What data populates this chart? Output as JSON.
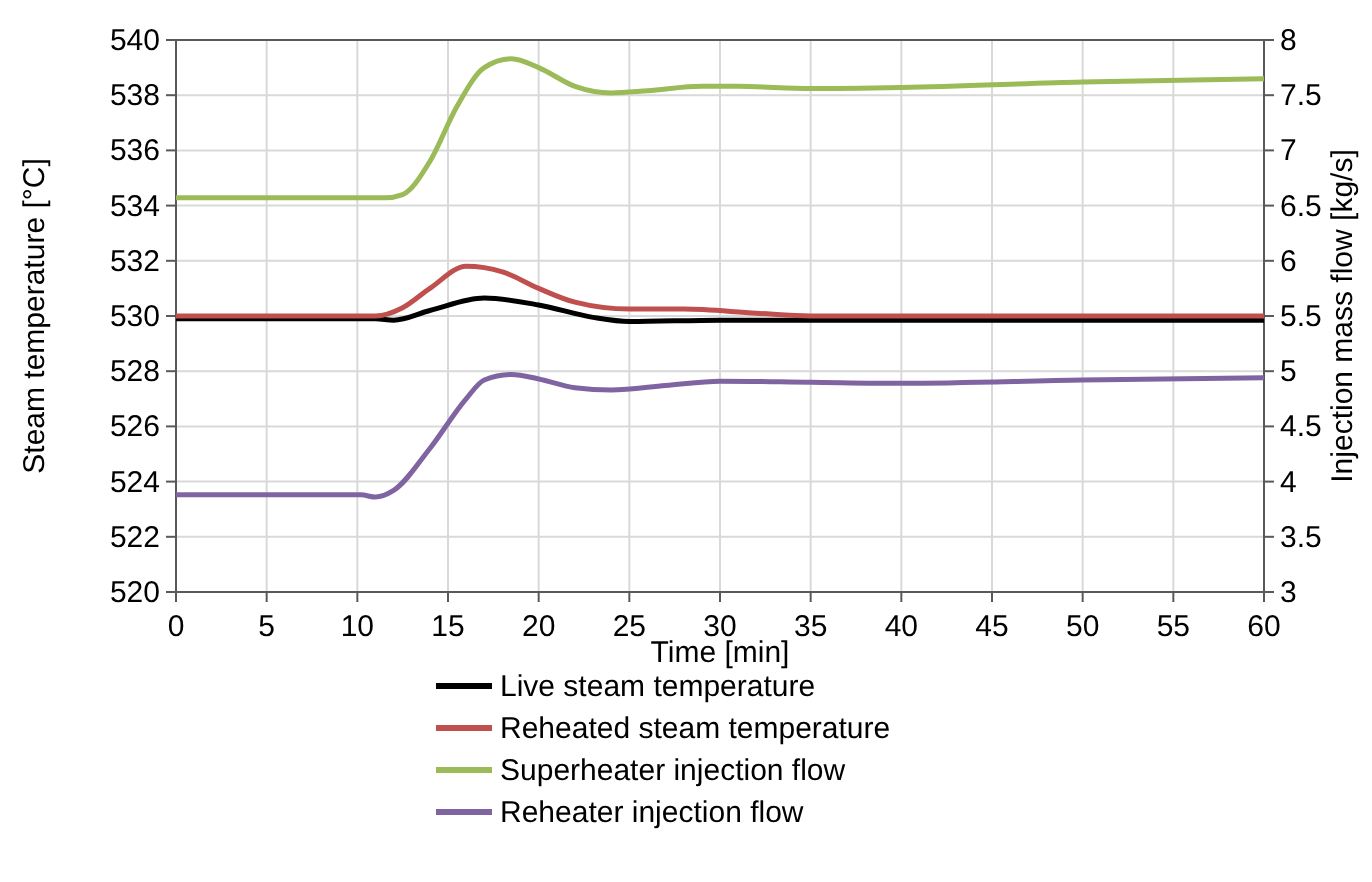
{
  "chart_data": {
    "type": "line",
    "xlabel": "Time [min]",
    "ylabel": "Steam temperature [°C]",
    "y2label": "Injection mass flow [kg/s]",
    "xlim": [
      0,
      60
    ],
    "xticks": [
      0,
      5,
      10,
      15,
      20,
      25,
      30,
      35,
      40,
      45,
      50,
      55,
      60
    ],
    "ylim": [
      520,
      540
    ],
    "yticks": [
      520,
      522,
      524,
      526,
      528,
      530,
      532,
      534,
      536,
      538,
      540
    ],
    "y2lim": [
      3,
      8
    ],
    "y2ticks": [
      3,
      3.5,
      4,
      4.5,
      5,
      5.5,
      6,
      6.5,
      7,
      7.5,
      8
    ],
    "grid": true,
    "legend": "bottom",
    "marker": "none",
    "line_style": "solid",
    "series": [
      {
        "name": "Live steam temperature",
        "color": "#000000",
        "x": [
          0,
          11,
          12,
          14,
          17,
          20,
          23,
          25,
          30,
          60
        ],
        "values": [
          529.9,
          529.9,
          529.85,
          530.2,
          530.65,
          530.4,
          529.95,
          529.8,
          529.85,
          529.85
        ]
      },
      {
        "name": "Reheated steam temperature",
        "color": "#c0504d",
        "x": [
          0,
          11,
          12.5,
          14,
          16,
          18,
          20,
          22,
          25,
          28,
          32,
          35,
          60
        ],
        "values": [
          530,
          530,
          530.3,
          531,
          531.8,
          531.6,
          531,
          530.5,
          530.25,
          530.25,
          530.1,
          530,
          530
        ]
      },
      {
        "name": "Superheater injection flow",
        "color": "#9bbb59",
        "axis": "y2",
        "x": [
          0,
          11.5,
          12.5,
          14,
          15.5,
          17,
          18.5,
          20,
          22,
          24,
          26,
          29,
          31,
          35,
          40,
          50,
          60
        ],
        "values": [
          6.57,
          6.57,
          6.6,
          6.9,
          7.4,
          7.75,
          7.83,
          7.75,
          7.58,
          7.52,
          7.54,
          7.58,
          7.58,
          7.56,
          7.57,
          7.62,
          7.65
        ]
      },
      {
        "name": "Reheater injection flow",
        "color": "#8064a2",
        "axis": "y2",
        "x": [
          0,
          10.2,
          11,
          12,
          14,
          16,
          17,
          18.5,
          20,
          22,
          24,
          27,
          30,
          35,
          40,
          50,
          60
        ],
        "values": [
          3.88,
          3.88,
          3.86,
          3.92,
          4.3,
          4.75,
          4.92,
          4.97,
          4.93,
          4.85,
          4.83,
          4.87,
          4.91,
          4.9,
          4.89,
          4.92,
          4.94
        ]
      }
    ]
  }
}
